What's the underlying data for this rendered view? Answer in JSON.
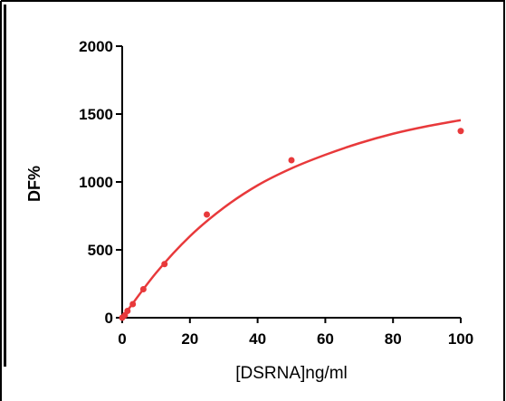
{
  "chart_data": {
    "type": "scatter",
    "title": "",
    "xlabel": "[DSRNA]ng/ml",
    "ylabel": "DF%",
    "xlim": [
      0,
      100
    ],
    "ylim": [
      0,
      2000
    ],
    "x_ticks": [
      "0",
      "20",
      "40",
      "60",
      "80",
      "100"
    ],
    "y_ticks": [
      "0",
      "500",
      "1000",
      "1500",
      "2000"
    ],
    "grid": false,
    "series": [
      {
        "points": [
          {
            "x": 0,
            "y": 0
          },
          {
            "x": 0.78,
            "y": 18
          },
          {
            "x": 1.56,
            "y": 50
          },
          {
            "x": 3.125,
            "y": 100
          },
          {
            "x": 6.25,
            "y": 210
          },
          {
            "x": 12.5,
            "y": 395
          },
          {
            "x": 25,
            "y": 760
          },
          {
            "x": 50,
            "y": 1160
          },
          {
            "x": 100,
            "y": 1375
          }
        ],
        "fit_curve": [
          {
            "x": 0,
            "y": 0
          },
          {
            "x": 10,
            "y": 330
          },
          {
            "x": 20,
            "y": 600
          },
          {
            "x": 30,
            "y": 810
          },
          {
            "x": 40,
            "y": 975
          },
          {
            "x": 50,
            "y": 1100
          },
          {
            "x": 60,
            "y": 1200
          },
          {
            "x": 70,
            "y": 1285
          },
          {
            "x": 80,
            "y": 1355
          },
          {
            "x": 90,
            "y": 1410
          },
          {
            "x": 100,
            "y": 1455
          }
        ],
        "color": "#e8393b"
      }
    ]
  },
  "colors": {
    "axis": "#000000",
    "series": "#e8393b"
  }
}
